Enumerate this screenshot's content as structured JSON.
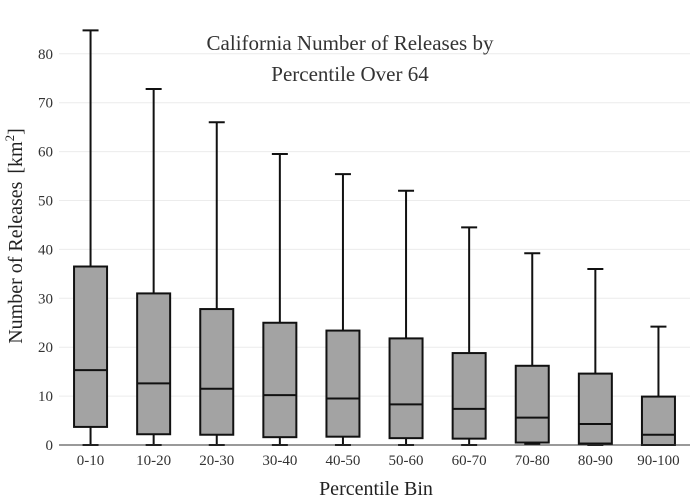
{
  "chart_data": {
    "type": "box",
    "title_lines": [
      "California Number of Releases by",
      "Percentile Over 64"
    ],
    "xlabel": "Percentile Bin",
    "ylabel": "Number of Releases",
    "ylabel_unit_base": "[km",
    "ylabel_unit_sup": "2",
    "ylabel_unit_close": "]",
    "ylim": [
      0,
      85
    ],
    "yticks": [
      0,
      10,
      20,
      30,
      40,
      50,
      60,
      70,
      80
    ],
    "grid": true,
    "box_fill": "#a3a3a3",
    "line_color": "#111111",
    "categories": [
      "0-10",
      "10-20",
      "20-30",
      "30-40",
      "40-50",
      "50-60",
      "60-70",
      "70-80",
      "80-90",
      "90-100"
    ],
    "boxes": [
      {
        "min": 0,
        "q1": 3.7,
        "median": 15.3,
        "q3": 36.5,
        "max": 84.8
      },
      {
        "min": 0,
        "q1": 2.2,
        "median": 12.6,
        "q3": 31.0,
        "max": 72.8
      },
      {
        "min": 0,
        "q1": 2.1,
        "median": 11.5,
        "q3": 27.8,
        "max": 66.0
      },
      {
        "min": 0,
        "q1": 1.6,
        "median": 10.2,
        "q3": 25.0,
        "max": 59.5
      },
      {
        "min": 0,
        "q1": 1.7,
        "median": 9.5,
        "q3": 23.4,
        "max": 55.4
      },
      {
        "min": 0,
        "q1": 1.4,
        "median": 8.3,
        "q3": 21.8,
        "max": 52.0
      },
      {
        "min": 0,
        "q1": 1.3,
        "median": 7.4,
        "q3": 18.8,
        "max": 44.5
      },
      {
        "min": 0.2,
        "q1": 0.5,
        "median": 5.6,
        "q3": 16.2,
        "max": 39.2
      },
      {
        "min": 0,
        "q1": 0.3,
        "median": 4.3,
        "q3": 14.6,
        "max": 36.0
      },
      {
        "min": 0,
        "q1": 0,
        "median": 2.1,
        "q3": 9.9,
        "max": 24.2
      }
    ]
  }
}
